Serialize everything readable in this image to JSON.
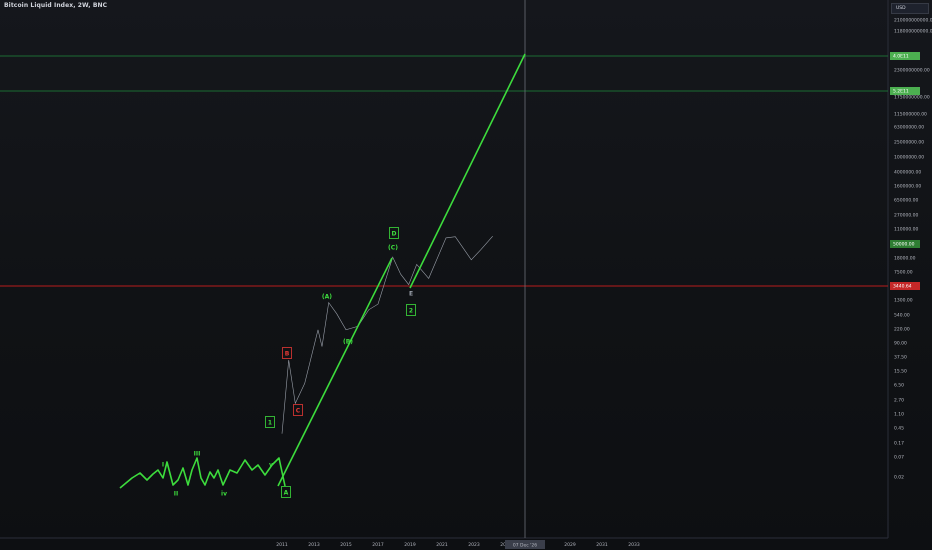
{
  "header": {
    "title": "Bitcoin Liquid Index, 2W, BNC"
  },
  "price_scale": {
    "currency": "USD",
    "ticks": [
      "210000000000.00",
      "118000000000.00",
      "2300000000.00",
      "1750000000.00",
      "115000000.00",
      "63000000.00",
      "25000000.00",
      "10000000.00",
      "4000000.00",
      "1600000.00",
      "650000.00",
      "270000.00",
      "110000.00",
      "18000.00",
      "7500.00",
      "1300.00",
      "540.00",
      "220.00",
      "90.00",
      "37.50",
      "15.50",
      "6.50",
      "2.70",
      "1.10",
      "0.45",
      "0.17",
      "0.07",
      "0.02"
    ],
    "markers": [
      {
        "label": "4.0E11",
        "color": "#4caf50"
      },
      {
        "label": "5.2E11",
        "color": "#4caf50"
      },
      {
        "label": "50000.00",
        "color": "#2e7d32"
      },
      {
        "label": "3440.64",
        "color": "#c62828"
      }
    ]
  },
  "time_scale": {
    "ticks": [
      "2011",
      "2013",
      "2015",
      "2017",
      "2019",
      "2021",
      "2023",
      "2025",
      "2027",
      "2029",
      "2031",
      "2033"
    ],
    "crosshair_label": "07 Dec '26"
  },
  "colors": {
    "impulse": "#3ddc3d",
    "hline_green": "#1e8a3c",
    "hline_red": "#b71c1c",
    "label_green": "#3ddc3d",
    "label_red": "#e53935",
    "price_line": "#9aa0aa"
  },
  "chart_data": {
    "type": "line",
    "title": "Bitcoin Liquid Index, 2W, BNC",
    "y_scale": "log",
    "x_range": [
      "2009",
      "2034"
    ],
    "series": [
      {
        "values": [
          {
            "date": "2011-01",
            "price": 0.3
          },
          {
            "date": "2011-06",
            "price": 30
          },
          {
            "date": "2011-11",
            "price": 2
          },
          {
            "date": "2012-06",
            "price": 7
          },
          {
            "date": "2013-04",
            "price": 200
          },
          {
            "date": "2013-07",
            "price": 70
          },
          {
            "date": "2013-12",
            "price": 1100
          },
          {
            "date": "2014-06",
            "price": 550
          },
          {
            "date": "2015-01",
            "price": 200
          },
          {
            "date": "2015-10",
            "price": 250
          },
          {
            "date": "2016-06",
            "price": 700
          },
          {
            "date": "2017-01",
            "price": 1000
          },
          {
            "date": "2017-12",
            "price": 19000
          },
          {
            "date": "2018-06",
            "price": 6500
          },
          {
            "date": "2018-12",
            "price": 3400
          },
          {
            "date": "2019-06",
            "price": 12000
          },
          {
            "date": "2020-03",
            "price": 5000
          },
          {
            "date": "2021-04",
            "price": 63000
          },
          {
            "date": "2021-11",
            "price": 68000
          },
          {
            "date": "2022-11",
            "price": 16000
          },
          {
            "date": "2023-06",
            "price": 30000
          },
          {
            "date": "2024-03",
            "price": 70000
          }
        ]
      }
    ],
    "horizontal_lines": [
      {
        "label": "4.0E11",
        "color": "#1e8a3c"
      },
      {
        "label": "5.2E11",
        "color": "#1e8a3c"
      },
      {
        "label": "3440.64",
        "color": "#b71c1c"
      }
    ],
    "wave_labels": [
      {
        "text": "I",
        "color": "#3ddc3d"
      },
      {
        "text": "II",
        "color": "#3ddc3d"
      },
      {
        "text": "III",
        "color": "#3ddc3d"
      },
      {
        "text": "iv",
        "color": "#3ddc3d"
      },
      {
        "text": "v",
        "color": "#3ddc3d"
      },
      {
        "text": "1",
        "color": "#3ddc3d"
      },
      {
        "text": "A",
        "color": "#3ddc3d"
      },
      {
        "text": "B",
        "color": "#e53935"
      },
      {
        "text": "C",
        "color": "#e53935"
      },
      {
        "text": "(A)",
        "color": "#3ddc3d"
      },
      {
        "text": "(B)",
        "color": "#3ddc3d"
      },
      {
        "text": "D",
        "color": "#3ddc3d"
      },
      {
        "text": "(C)",
        "color": "#3ddc3d"
      },
      {
        "text": "E",
        "color": "#9aa0aa"
      },
      {
        "text": "2",
        "color": "#3ddc3d"
      }
    ]
  }
}
